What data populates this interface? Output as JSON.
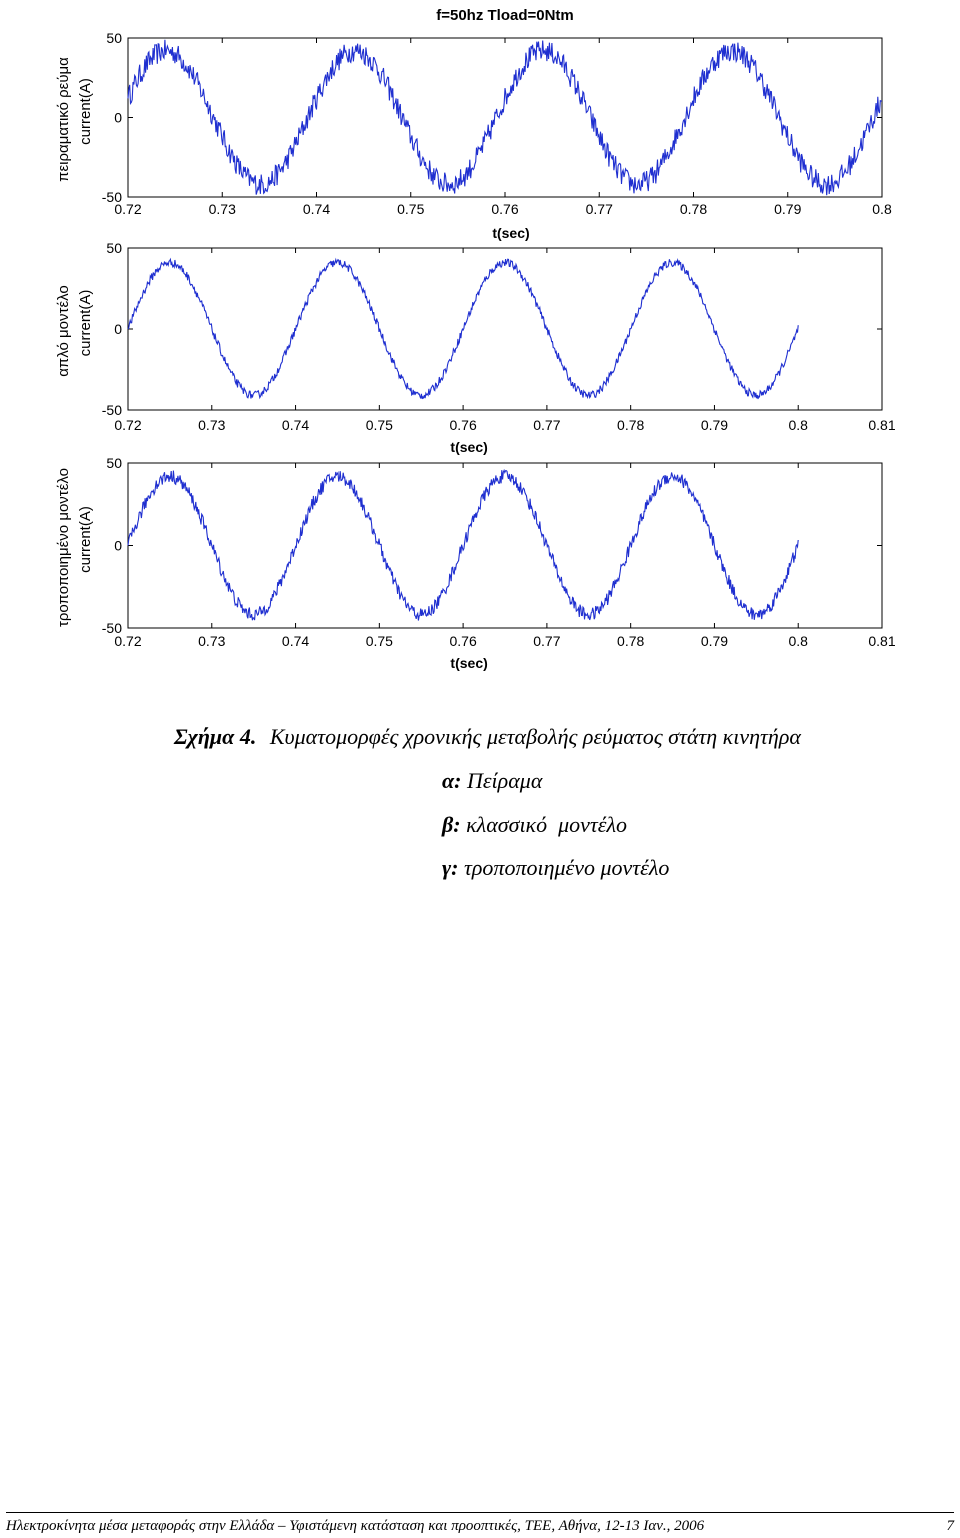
{
  "figure_title": "f=50hz  Tload=0Ntm",
  "chart_data": [
    {
      "type": "line",
      "panel": "α",
      "ylabel_1": "πειραματικό ρεύμα",
      "ylabel_2": "current(A)",
      "xlabel": "t(sec)",
      "xlim": [
        0.72,
        0.8
      ],
      "ylim": [
        -50,
        50
      ],
      "xticks": [
        "0.72",
        "0.73",
        "0.74",
        "0.75",
        "0.76",
        "0.77",
        "0.78",
        "0.79",
        "0.8"
      ],
      "yticks": [
        "50",
        "0",
        "-50"
      ],
      "series": [
        {
          "frequency_hz": 50,
          "amplitude": 42,
          "noise": 7,
          "t_start": 0.72,
          "t_end": 0.8,
          "value_at_start": 12
        }
      ]
    },
    {
      "type": "line",
      "panel": "β",
      "ylabel_1": "απλό μοντέλο",
      "ylabel_2": "current(A)",
      "xlabel": "t(sec)",
      "xlim": [
        0.72,
        0.81
      ],
      "ylim": [
        -50,
        50
      ],
      "xticks": [
        "0.72",
        "0.73",
        "0.74",
        "0.75",
        "0.76",
        "0.77",
        "0.78",
        "0.79",
        "0.8",
        "0.81"
      ],
      "yticks": [
        "50",
        "0",
        "-50"
      ],
      "series": [
        {
          "frequency_hz": 50,
          "amplitude": 41,
          "noise": 2.5,
          "t_start": 0.72,
          "t_end": 0.8,
          "value_at_start": 0
        }
      ]
    },
    {
      "type": "line",
      "panel": "γ",
      "ylabel_1": "τροποποιημένο μοντέλο",
      "ylabel_2": "current(A)",
      "xlabel": "t(sec)",
      "xlim": [
        0.72,
        0.81
      ],
      "ylim": [
        -50,
        50
      ],
      "xticks": [
        "0.72",
        "0.73",
        "0.74",
        "0.75",
        "0.76",
        "0.77",
        "0.78",
        "0.79",
        "0.8",
        "0.81"
      ],
      "yticks": [
        "50",
        "0",
        "-50"
      ],
      "series": [
        {
          "frequency_hz": 50,
          "amplitude": 42,
          "noise": 4,
          "t_start": 0.72,
          "t_end": 0.8,
          "value_at_start": 0
        }
      ]
    }
  ],
  "line_color": "#1f2fd0",
  "caption": {
    "label": "Σχήμα 4.",
    "text": "Κυματομορφές χρονικής μεταβολής ρεύματος στάτη κινητήρα",
    "items": [
      {
        "key": "α:",
        "text": "Πείραμα"
      },
      {
        "key": "β:",
        "text": "κλασσικό  μοντέλο"
      },
      {
        "key": "γ:",
        "text": "τροποποιημένο μοντέλο"
      }
    ]
  },
  "footer": {
    "text": "Ηλεκτροκίνητα μέσα μεταφοράς στην Ελλάδα – Υφιστάμενη κατάσταση και προοπτικές, ΤΕΕ, Αθήνα, 12-13 Ιαν., 2006",
    "page": "7"
  }
}
